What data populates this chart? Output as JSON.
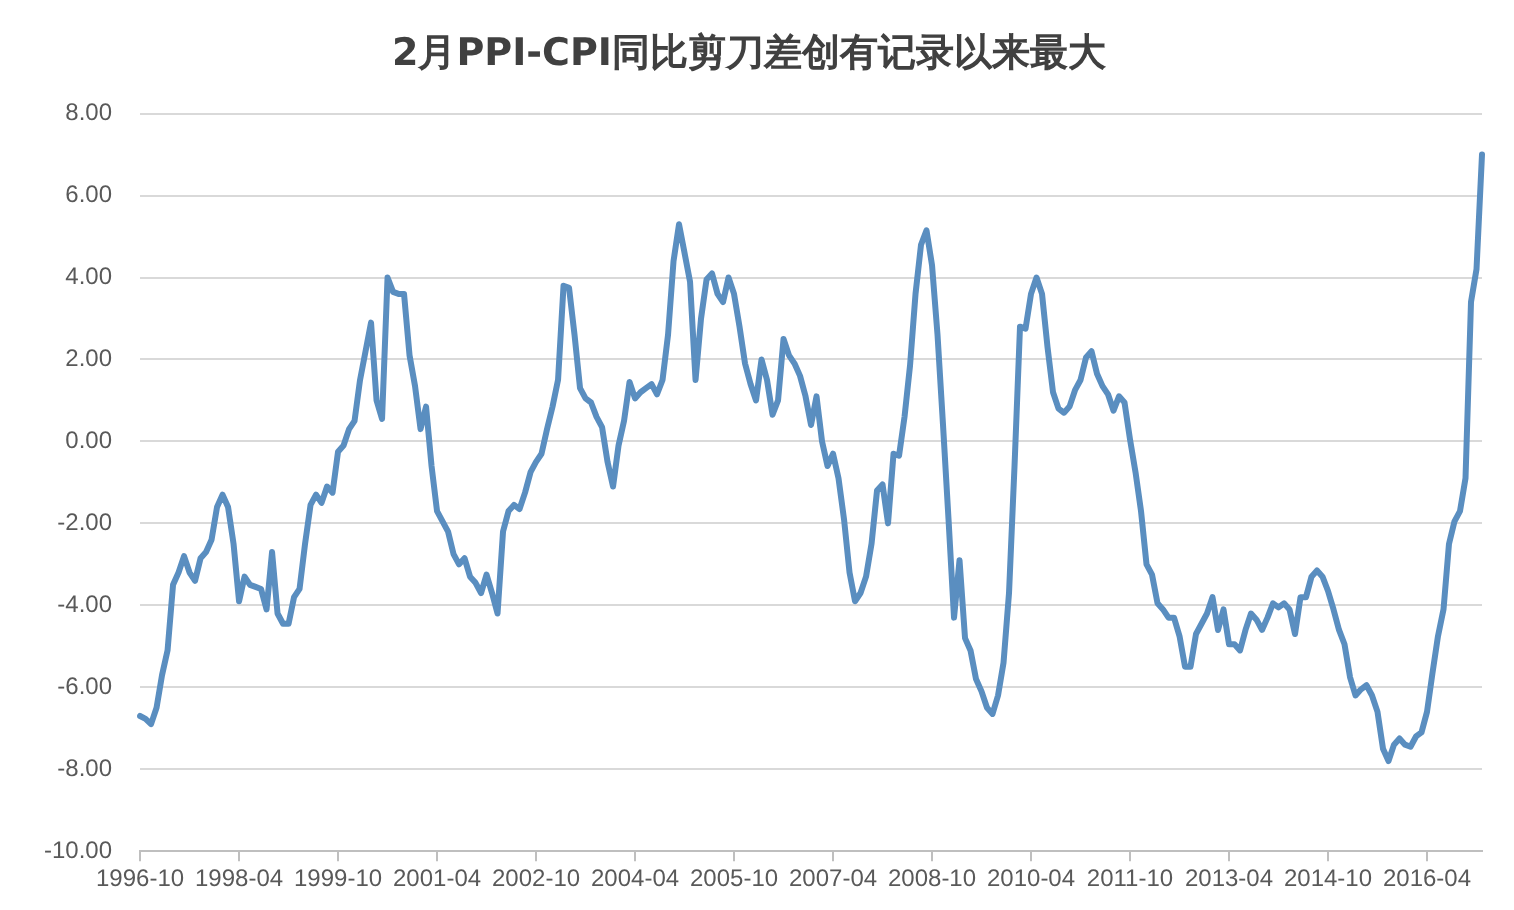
{
  "chart_data": {
    "type": "line",
    "title": "2月PPI-CPI同比剪刀差创有记录以来最大",
    "categories": [
      "1996-10",
      null,
      null,
      null,
      null,
      null,
      null,
      null,
      null,
      null,
      null,
      null,
      null,
      null,
      null,
      null,
      null,
      null,
      "1998-04",
      null,
      null,
      null,
      null,
      null,
      null,
      null,
      null,
      null,
      null,
      null,
      null,
      null,
      null,
      null,
      null,
      null,
      "1999-10",
      null,
      null,
      null,
      null,
      null,
      null,
      null,
      null,
      null,
      null,
      null,
      null,
      null,
      null,
      null,
      null,
      null,
      "2001-04",
      null,
      null,
      null,
      null,
      null,
      null,
      null,
      null,
      null,
      null,
      null,
      null,
      null,
      null,
      null,
      null,
      null,
      "2002-10",
      null,
      null,
      null,
      null,
      null,
      null,
      null,
      null,
      null,
      null,
      null,
      null,
      null,
      null,
      null,
      null,
      null,
      "2004-04",
      null,
      null,
      null,
      null,
      null,
      null,
      null,
      null,
      null,
      null,
      null,
      null,
      null,
      null,
      null,
      null,
      null,
      "2005-10",
      null,
      null,
      null,
      null,
      null,
      null,
      null,
      null,
      null,
      null,
      null,
      null,
      null,
      null,
      null,
      null,
      null,
      "2007-04",
      null,
      null,
      null,
      null,
      null,
      null,
      null,
      null,
      null,
      null,
      null,
      null,
      null,
      null,
      null,
      null,
      null,
      "2008-10",
      null,
      null,
      null,
      null,
      null,
      null,
      null,
      null,
      null,
      null,
      null,
      null,
      null,
      null,
      null,
      null,
      null,
      "2010-04",
      null,
      null,
      null,
      null,
      null,
      null,
      null,
      null,
      null,
      null,
      null,
      null,
      null,
      null,
      null,
      null,
      null,
      "2011-10",
      null,
      null,
      null,
      null,
      null,
      null,
      null,
      null,
      null,
      null,
      null,
      null,
      null,
      null,
      null,
      null,
      null,
      "2013-04",
      null,
      null,
      null,
      null,
      null,
      null,
      null,
      null,
      null,
      null,
      null,
      null,
      null,
      null,
      null,
      null,
      null,
      "2014-10",
      null,
      null,
      null,
      null,
      null,
      null,
      null,
      null,
      null,
      null,
      null,
      null,
      null,
      null,
      null,
      null,
      null,
      "2016-04",
      null,
      null,
      null,
      null,
      null,
      null,
      null,
      null,
      null,
      null
    ],
    "values": [
      -6.7,
      -6.77,
      -6.9,
      -6.5,
      -5.7,
      -5.1,
      -3.5,
      -3.2,
      -2.8,
      -3.2,
      -3.4,
      -2.85,
      -2.7,
      -2.4,
      -1.6,
      -1.3,
      -1.6,
      -2.5,
      -3.9,
      -3.3,
      -3.5,
      -3.55,
      -3.6,
      -4.1,
      -2.7,
      -4.2,
      -4.45,
      -4.45,
      -3.8,
      -3.6,
      -2.5,
      -1.55,
      -1.3,
      -1.5,
      -1.1,
      -1.25,
      -0.25,
      -0.1,
      0.3,
      0.5,
      1.5,
      2.2,
      2.9,
      1.0,
      0.55,
      4.0,
      3.65,
      3.6,
      3.6,
      2.1,
      1.35,
      0.3,
      0.85,
      -0.6,
      -1.7,
      -1.95,
      -2.2,
      -2.75,
      -3.0,
      -2.85,
      -3.3,
      -3.45,
      -3.7,
      -3.25,
      -3.7,
      -4.2,
      -2.2,
      -1.7,
      -1.55,
      -1.65,
      -1.25,
      -0.75,
      -0.5,
      -0.3,
      0.3,
      0.85,
      1.5,
      3.8,
      3.75,
      2.6,
      1.3,
      1.05,
      0.95,
      0.6,
      0.35,
      -0.5,
      -1.1,
      -0.1,
      0.5,
      1.45,
      1.05,
      1.2,
      1.3,
      1.4,
      1.15,
      1.5,
      2.6,
      4.4,
      5.3,
      4.6,
      3.9,
      1.5,
      3.0,
      3.95,
      4.1,
      3.6,
      3.4,
      4.0,
      3.6,
      2.8,
      1.9,
      1.4,
      1.0,
      2.0,
      1.5,
      0.65,
      1.0,
      2.5,
      2.1,
      1.9,
      1.6,
      1.1,
      0.4,
      1.1,
      0.0,
      -0.6,
      -0.3,
      -0.9,
      -1.9,
      -3.2,
      -3.9,
      -3.7,
      -3.3,
      -2.5,
      -1.2,
      -1.05,
      -2.0,
      -0.3,
      -0.35,
      0.6,
      1.85,
      3.6,
      4.8,
      5.15,
      4.3,
      2.6,
      0.4,
      -1.9,
      -4.3,
      -2.9,
      -4.8,
      -5.1,
      -5.8,
      -6.1,
      -6.5,
      -6.65,
      -6.2,
      -5.4,
      -3.7,
      -0.6,
      2.8,
      2.75,
      3.6,
      4.0,
      3.6,
      2.3,
      1.2,
      0.8,
      0.7,
      0.85,
      1.25,
      1.5,
      2.05,
      2.2,
      1.65,
      1.35,
      1.15,
      0.75,
      1.1,
      0.95,
      0.05,
      -0.75,
      -1.7,
      -3.0,
      -3.25,
      -3.95,
      -4.1,
      -4.3,
      -4.3,
      -4.75,
      -5.5,
      -5.5,
      -4.7,
      -4.45,
      -4.2,
      -3.8,
      -4.6,
      -4.1,
      -4.95,
      -4.95,
      -5.1,
      -4.6,
      -4.2,
      -4.35,
      -4.6,
      -4.3,
      -3.95,
      -4.05,
      -3.95,
      -4.1,
      -4.7,
      -3.8,
      -3.8,
      -3.3,
      -3.15,
      -3.3,
      -3.65,
      -4.1,
      -4.6,
      -4.95,
      -5.75,
      -6.2,
      -6.05,
      -5.95,
      -6.2,
      -6.6,
      -7.5,
      -7.8,
      -7.4,
      -7.25,
      -7.4,
      -7.45,
      -7.2,
      -7.1,
      -6.6,
      -5.65,
      -4.75,
      -4.1,
      -2.5,
      -1.95,
      -1.7,
      -0.9,
      3.4,
      4.2,
      7.0
    ],
    "color": "#5a8ec0",
    "ylim": [
      -10,
      8
    ],
    "yticks": [
      {
        "value": -10,
        "label": "-10.00"
      },
      {
        "value": -8,
        "label": "-8.00"
      },
      {
        "value": -6,
        "label": "-6.00"
      },
      {
        "value": -4,
        "label": "-4.00"
      },
      {
        "value": -2,
        "label": "-2.00"
      },
      {
        "value": 0,
        "label": "0.00"
      },
      {
        "value": 2,
        "label": "2.00"
      },
      {
        "value": 4,
        "label": "4.00"
      },
      {
        "value": 6,
        "label": "6.00"
      },
      {
        "value": 8,
        "label": "8.00"
      }
    ],
    "grid": "y",
    "marker": "none"
  }
}
